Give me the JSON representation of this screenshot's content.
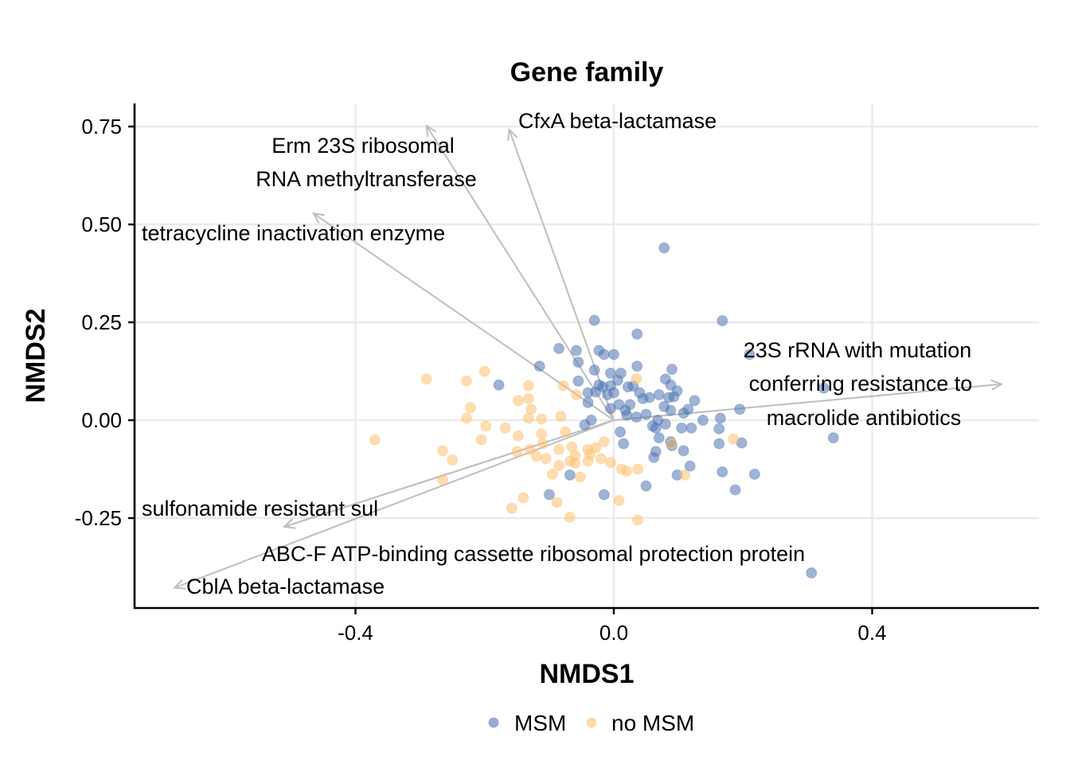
{
  "chart_data": {
    "type": "scatter",
    "title": "Gene family",
    "xlabel": "NMDS1",
    "ylabel": "NMDS2",
    "xlim": [
      -0.74,
      0.66
    ],
    "ylim": [
      -0.48,
      0.81
    ],
    "x_ticks": [
      -0.4,
      0.0,
      0.4
    ],
    "x_tick_labels": [
      "-0.4",
      "0.0",
      "0.4"
    ],
    "y_ticks": [
      -0.25,
      0.0,
      0.25,
      0.5,
      0.75
    ],
    "y_tick_labels": [
      "-0.25",
      "0.00",
      "0.25",
      "0.50",
      "0.75"
    ],
    "grid": true,
    "legend_position": "bottom",
    "series": [
      {
        "name": "MSM",
        "color": "#4F74B3",
        "points": [
          [
            0.078,
            0.44
          ],
          [
            -0.03,
            0.255
          ],
          [
            0.168,
            0.254
          ],
          [
            0.036,
            0.22
          ],
          [
            0.21,
            0.168
          ],
          [
            -0.085,
            0.183
          ],
          [
            -0.058,
            0.178
          ],
          [
            -0.023,
            0.178
          ],
          [
            -0.015,
            0.168
          ],
          [
            0.0,
            0.168
          ],
          [
            -0.115,
            0.138
          ],
          [
            -0.055,
            0.148
          ],
          [
            0.036,
            0.138
          ],
          [
            0.09,
            0.13
          ],
          [
            -0.03,
            0.128
          ],
          [
            -0.005,
            0.12
          ],
          [
            0.011,
            0.12
          ],
          [
            0.006,
            0.102
          ],
          [
            0.08,
            0.105
          ],
          [
            -0.055,
            0.1
          ],
          [
            -0.023,
            0.09
          ],
          [
            -0.017,
            0.085
          ],
          [
            -0.005,
            0.088
          ],
          [
            0.022,
            0.085
          ],
          [
            0.03,
            0.087
          ],
          [
            0.088,
            0.09
          ],
          [
            0.098,
            0.075
          ],
          [
            -0.178,
            0.09
          ],
          [
            0.325,
            0.082
          ],
          [
            -0.04,
            0.07
          ],
          [
            -0.028,
            0.072
          ],
          [
            -0.01,
            0.065
          ],
          [
            0.0,
            0.07
          ],
          [
            0.04,
            0.07
          ],
          [
            0.055,
            0.058
          ],
          [
            0.07,
            0.065
          ],
          [
            0.085,
            0.058
          ],
          [
            0.093,
            0.06
          ],
          [
            0.125,
            0.05
          ],
          [
            -0.04,
            0.045
          ],
          [
            0.008,
            0.04
          ],
          [
            0.025,
            0.04
          ],
          [
            0.045,
            0.055
          ],
          [
            -0.005,
            0.03
          ],
          [
            0.018,
            0.025
          ],
          [
            0.05,
            0.015
          ],
          [
            0.078,
            0.035
          ],
          [
            0.088,
            0.025
          ],
          [
            0.108,
            0.018
          ],
          [
            0.115,
            0.028
          ],
          [
            0.195,
            0.028
          ],
          [
            0.02,
            0.013
          ],
          [
            0.035,
            0.008
          ],
          [
            0.068,
            0.0
          ],
          [
            0.165,
            0.005
          ],
          [
            0.138,
            0.0
          ],
          [
            -0.035,
            0.0
          ],
          [
            -0.045,
            -0.012
          ],
          [
            0.01,
            -0.03
          ],
          [
            0.06,
            -0.015
          ],
          [
            0.065,
            -0.02
          ],
          [
            0.08,
            -0.01
          ],
          [
            0.105,
            -0.02
          ],
          [
            0.12,
            -0.02
          ],
          [
            0.163,
            -0.022
          ],
          [
            0.34,
            -0.045
          ],
          [
            0.07,
            -0.045
          ],
          [
            0.088,
            -0.055
          ],
          [
            0.09,
            -0.065
          ],
          [
            0.163,
            -0.06
          ],
          [
            0.198,
            -0.058
          ],
          [
            0.015,
            -0.06
          ],
          [
            0.065,
            -0.08
          ],
          [
            0.108,
            -0.078
          ],
          [
            0.062,
            -0.095
          ],
          [
            0.118,
            -0.117
          ],
          [
            0.168,
            -0.132
          ],
          [
            0.218,
            -0.138
          ],
          [
            0.098,
            -0.14
          ],
          [
            -0.068,
            -0.14
          ],
          [
            0.05,
            -0.168
          ],
          [
            0.188,
            -0.178
          ],
          [
            -0.1,
            -0.19
          ],
          [
            -0.015,
            -0.19
          ],
          [
            0.306,
            -0.39
          ]
        ]
      },
      {
        "name": "no MSM",
        "color": "#FDBF6F",
        "points": [
          [
            -0.29,
            0.105
          ],
          [
            -0.2,
            0.125
          ],
          [
            -0.228,
            0.1
          ],
          [
            -0.132,
            0.088
          ],
          [
            -0.078,
            0.088
          ],
          [
            0.035,
            0.106
          ],
          [
            -0.148,
            0.05
          ],
          [
            -0.132,
            0.055
          ],
          [
            -0.058,
            0.065
          ],
          [
            -0.222,
            0.032
          ],
          [
            -0.128,
            0.028
          ],
          [
            -0.228,
            0.005
          ],
          [
            -0.132,
            0.005
          ],
          [
            -0.112,
            0.003
          ],
          [
            -0.082,
            0.01
          ],
          [
            -0.198,
            -0.015
          ],
          [
            -0.168,
            -0.02
          ],
          [
            -0.148,
            -0.04
          ],
          [
            -0.112,
            -0.035
          ],
          [
            -0.075,
            -0.03
          ],
          [
            -0.205,
            -0.05
          ],
          [
            -0.37,
            -0.05
          ],
          [
            -0.015,
            -0.055
          ],
          [
            -0.11,
            -0.06
          ],
          [
            -0.065,
            -0.068
          ],
          [
            -0.04,
            -0.075
          ],
          [
            -0.028,
            -0.07
          ],
          [
            -0.13,
            -0.075
          ],
          [
            -0.085,
            -0.075
          ],
          [
            -0.15,
            -0.08
          ],
          [
            -0.265,
            -0.078
          ],
          [
            -0.12,
            -0.092
          ],
          [
            -0.105,
            -0.098
          ],
          [
            -0.06,
            -0.09
          ],
          [
            -0.037,
            -0.088
          ],
          [
            -0.02,
            -0.098
          ],
          [
            -0.005,
            -0.108
          ],
          [
            -0.25,
            -0.102
          ],
          [
            -0.068,
            -0.105
          ],
          [
            -0.04,
            -0.105
          ],
          [
            -0.085,
            -0.115
          ],
          [
            -0.06,
            -0.11
          ],
          [
            0.012,
            -0.125
          ],
          [
            0.037,
            -0.125
          ],
          [
            0.02,
            -0.13
          ],
          [
            -0.095,
            -0.138
          ],
          [
            -0.052,
            -0.145
          ],
          [
            0.11,
            -0.14
          ],
          [
            0.185,
            -0.048
          ],
          [
            0.09,
            -0.06
          ],
          [
            -0.265,
            -0.152
          ],
          [
            -0.14,
            -0.198
          ],
          [
            -0.158,
            -0.225
          ],
          [
            -0.088,
            -0.21
          ],
          [
            0.008,
            -0.205
          ],
          [
            -0.068,
            -0.248
          ],
          [
            0.037,
            -0.255
          ]
        ]
      }
    ],
    "vectors": [
      {
        "label": "CfxA beta-lactamase",
        "x": -0.162,
        "y": 0.742
      },
      {
        "label": "Erm 23S ribosomal RNA methyltransferase",
        "x": -0.29,
        "y": 0.752
      },
      {
        "label": "tetracycline inactivation enzyme",
        "x": -0.465,
        "y": 0.528
      },
      {
        "label": "23S rRNA with mutation conferring resistance to macrolide antibiotics",
        "x": 0.6,
        "y": 0.092
      },
      {
        "label": "sulfonamide resistant sul",
        "x": -0.51,
        "y": -0.272
      },
      {
        "label": "ABC-F ATP-binding cassette ribosomal protection protein",
        "x": -0.51,
        "y": -0.272
      },
      {
        "label": "CblA beta-lactamase",
        "x": -0.68,
        "y": -0.428
      }
    ],
    "vector_text": {
      "erm_line1": "Erm 23S ribosomal",
      "erm_line2": "RNA methyltransferase",
      "rrna_line1": "23S rRNA with mutation",
      "rrna_line2": "conferring resistance to",
      "rrna_line3": "macrolide antibiotics"
    },
    "legend": [
      {
        "label": "MSM",
        "color": "#4F74B3"
      },
      {
        "label": "no MSM",
        "color": "#FDBF6F"
      }
    ],
    "colors": {
      "arrow": "#BEBEBE",
      "grid": "#EBEBEB",
      "axis": "#000000"
    }
  }
}
